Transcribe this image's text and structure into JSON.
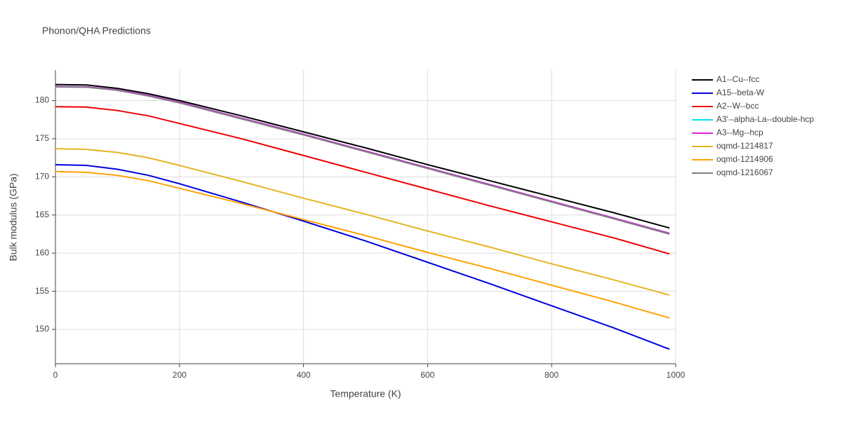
{
  "chart_data": {
    "type": "line",
    "title": "Phonon/QHA Predictions",
    "x_label": "Temperature (K)",
    "y_label": "Bulk modulus (GPa)",
    "x": [
      0,
      50,
      100,
      150,
      200,
      300,
      400,
      500,
      600,
      700,
      800,
      900,
      990
    ],
    "series": [
      {
        "name": "A1--Cu--fcc",
        "color": "#000000",
        "values": [
          182.1,
          182.05,
          181.6,
          180.9,
          180.0,
          178.0,
          175.9,
          173.8,
          171.6,
          169.5,
          167.4,
          165.3,
          163.3
        ]
      },
      {
        "name": "A15--beta-W",
        "color": "#0000dd",
        "values": [
          171.6,
          171.5,
          171.0,
          170.2,
          169.1,
          166.7,
          164.2,
          161.6,
          158.8,
          156.0,
          153.1,
          150.2,
          147.4
        ]
      },
      {
        "name": "A2--W--bcc",
        "color": "#ee0000",
        "values": [
          179.2,
          179.15,
          178.7,
          178.0,
          177.0,
          175.0,
          172.8,
          170.6,
          168.4,
          166.2,
          164.1,
          162.0,
          159.9
        ]
      },
      {
        "name": "A3'--alpha-La--double-hcp",
        "color": "#00e5ee",
        "values": [
          181.85,
          181.8,
          181.4,
          180.7,
          179.8,
          177.7,
          175.6,
          173.4,
          171.2,
          169.0,
          166.8,
          164.6,
          162.6
        ]
      },
      {
        "name": "A3--Mg--hcp",
        "color": "#dd22dd",
        "values": [
          181.85,
          181.8,
          181.4,
          180.7,
          179.8,
          177.7,
          175.6,
          173.4,
          171.2,
          169.0,
          166.8,
          164.6,
          162.6
        ]
      },
      {
        "name": "oqmd-1214817",
        "color": "#e6b422",
        "values": [
          173.7,
          173.6,
          173.2,
          172.5,
          171.5,
          169.4,
          167.2,
          165.1,
          162.9,
          160.8,
          158.6,
          156.5,
          154.5
        ]
      },
      {
        "name": "oqmd-1214906",
        "color": "#ffa000",
        "values": [
          170.7,
          170.6,
          170.2,
          169.5,
          168.5,
          166.5,
          164.4,
          162.3,
          160.1,
          158.0,
          155.8,
          153.6,
          151.5
        ]
      },
      {
        "name": "oqmd-1216067",
        "color": "#808080",
        "values": [
          181.8,
          181.75,
          181.35,
          180.6,
          179.7,
          177.6,
          175.5,
          173.3,
          171.1,
          168.9,
          166.7,
          164.5,
          162.5
        ]
      }
    ],
    "xlim": [
      0,
      1000
    ],
    "xticks": [
      0,
      200,
      400,
      600,
      800,
      1000
    ],
    "ylim": [
      145.5,
      184
    ],
    "yticks": [
      150,
      155,
      160,
      165,
      170,
      175,
      180
    ],
    "grid": true
  }
}
